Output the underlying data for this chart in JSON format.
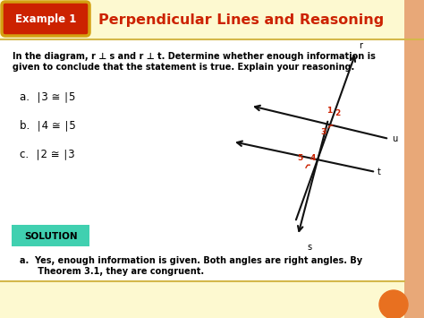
{
  "bg_color": "#fdf9d0",
  "header_bg_gradient_top": "#e8a000",
  "header_bg": "#cc2200",
  "header_text": "Example 1",
  "title_text": "Perpendicular Lines and Reasoning",
  "title_color": "#cc2200",
  "border_color": "#d4b84a",
  "body_bg": "#ffffff",
  "problem_text_line1": "In the diagram, r ⊥ s and r ⊥ t. Determine whether enough information is",
  "problem_text_line2": "given to conclude that the statement is true. Explain your reasoning.",
  "items": [
    "a.  ∣3 ≅ ∣5",
    "b.  ∣4 ≅ ∣5",
    "c.  ∣2 ≅ ∣3"
  ],
  "solution_bg": "#40d0b0",
  "solution_text": "SOLUTION",
  "answer_text_line1": "a.  Yes, enough information is given. Both angles are right angles. By",
  "answer_text_line2": "      Theorem 3.1, they are congruent.",
  "orange_circle_color": "#e87020",
  "side_border_color": "#e8a878",
  "angle_color": "#cc2200",
  "line_color": "#111111"
}
